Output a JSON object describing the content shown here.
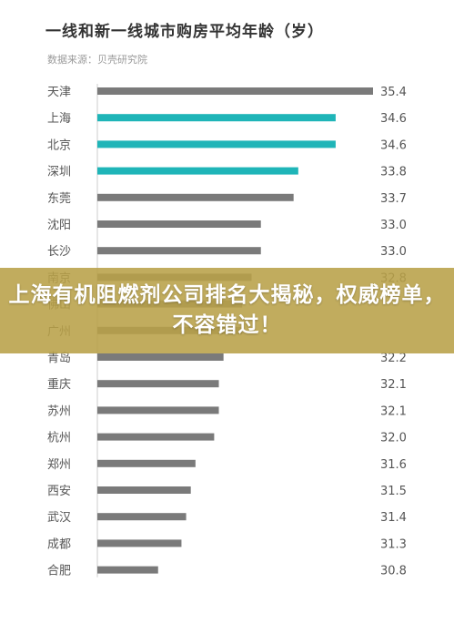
{
  "chart_data": {
    "type": "bar",
    "orientation": "horizontal",
    "title": "一线和新一线城市购房平均年龄（岁）",
    "source": "数据来源：贝壳研究院",
    "categories": [
      "天津",
      "上海",
      "北京",
      "深圳",
      "东莞",
      "沈阳",
      "长沙",
      "南京",
      "佛山",
      "广州",
      "青岛",
      "重庆",
      "苏州",
      "杭州",
      "郑州",
      "西安",
      "武汉",
      "成都",
      "合肥"
    ],
    "values": [
      35.4,
      34.6,
      34.6,
      33.8,
      33.7,
      33.0,
      33.0,
      32.8,
      32.6,
      32.6,
      32.2,
      32.1,
      32.1,
      32.0,
      31.6,
      31.5,
      31.4,
      31.3,
      30.8
    ],
    "value_labels": [
      "35.4",
      "34.6",
      "34.6",
      "33.8",
      "33.7",
      "33.0",
      "33.0",
      "32.8",
      "",
      "",
      "32.2",
      "32.1",
      "32.1",
      "32.0",
      "31.6",
      "31.5",
      "31.4",
      "31.3",
      "30.8"
    ],
    "highlight": [
      "上海",
      "北京",
      "深圳"
    ],
    "colors": {
      "default": "#7a7a7a",
      "highlight": "#1fb5b8"
    },
    "xlim": [
      29.5,
      35.4
    ],
    "grid": false
  },
  "banner": {
    "headline": "上海有机阻燃剂公司排名大揭秘，权威榜单，不容错过！"
  }
}
